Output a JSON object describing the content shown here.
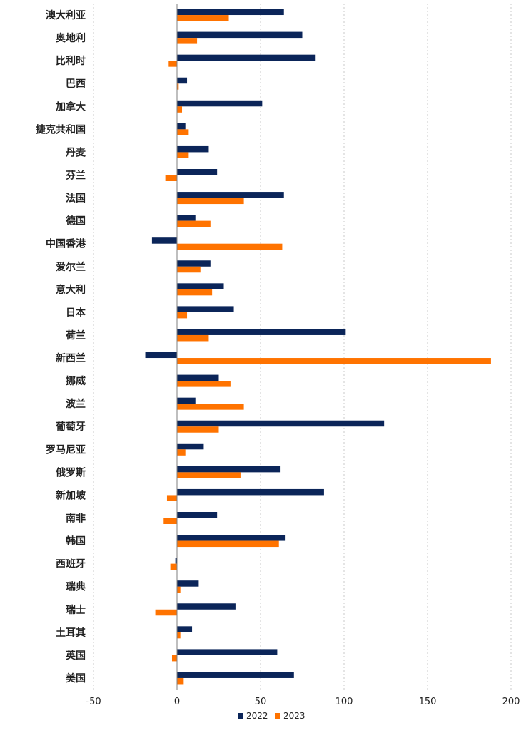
{
  "chart_data": {
    "type": "bar",
    "orientation": "horizontal",
    "title": "",
    "xlabel": "",
    "ylabel": "",
    "xlim": [
      -50,
      200
    ],
    "x_ticks": [
      -50,
      0,
      50,
      100,
      150,
      200
    ],
    "grid": "vertical dotted",
    "legend_position": "bottom-center",
    "categories": [
      "澳大利亚",
      "奥地利",
      "比利时",
      "巴西",
      "加拿大",
      "捷克共和国",
      "丹麦",
      "芬兰",
      "法国",
      "德国",
      "中国香港",
      "爱尔兰",
      "意大利",
      "日本",
      "荷兰",
      "新西兰",
      "挪威",
      "波兰",
      "葡萄牙",
      "罗马尼亚",
      "俄罗斯",
      "新加坡",
      "南非",
      "韩国",
      "西班牙",
      "瑞典",
      "瑞士",
      "土耳其",
      "英国",
      "美国"
    ],
    "series": [
      {
        "name": "2022",
        "color": "#0b2559",
        "values": [
          64,
          75,
          83,
          6,
          51,
          5,
          19,
          24,
          64,
          11,
          -15,
          20,
          28,
          34,
          101,
          -19,
          25,
          11,
          124,
          16,
          62,
          88,
          24,
          65,
          -1,
          13,
          35,
          9,
          60,
          70
        ]
      },
      {
        "name": "2023",
        "color": "#ff7300",
        "values": [
          31,
          12,
          -5,
          1,
          3,
          7,
          7,
          -7,
          40,
          20,
          63,
          14,
          21,
          6,
          19,
          188,
          32,
          40,
          25,
          5,
          38,
          -6,
          -8,
          61,
          -4,
          2,
          -13,
          2,
          -3,
          4
        ]
      }
    ]
  }
}
